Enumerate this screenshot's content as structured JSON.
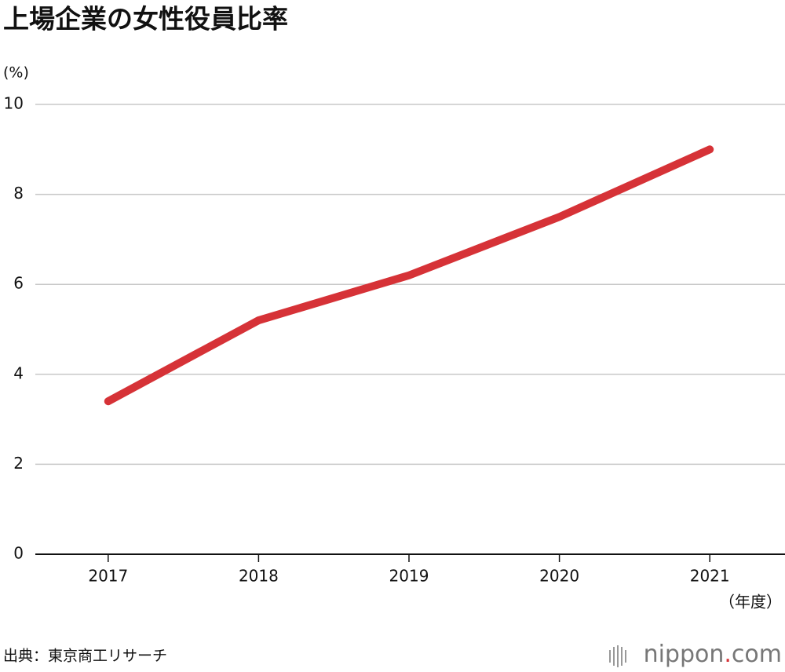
{
  "chart_data": {
    "type": "line",
    "title": "上場企業の女性役員比率",
    "y_label": "(%)",
    "x_label": "（年度）",
    "categories": [
      "2017",
      "2018",
      "2019",
      "2020",
      "2021"
    ],
    "values": [
      3.4,
      5.2,
      6.2,
      7.5,
      9.0
    ],
    "color": "#d63237",
    "ylim": [
      0,
      10
    ],
    "yticks": [
      0,
      2,
      4,
      6,
      8,
      10
    ],
    "grid": true
  },
  "footer": {
    "source": "出典：東京商工リサーチ",
    "logo": [
      "nippon",
      ".",
      "com"
    ]
  }
}
